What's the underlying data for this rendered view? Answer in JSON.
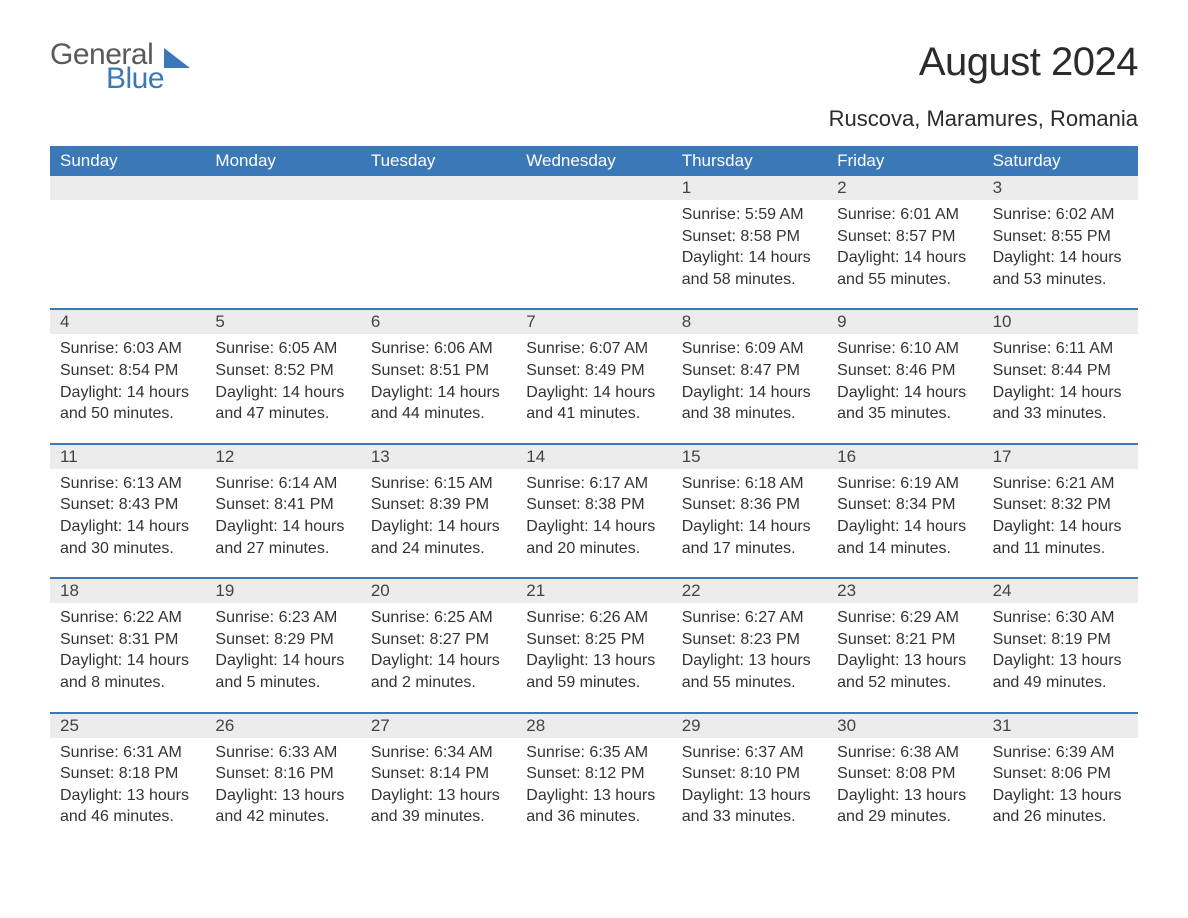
{
  "logo": {
    "general": "General",
    "blue": "Blue",
    "icon_color": "#3b78b8"
  },
  "title": "August 2024",
  "location": "Ruscova, Maramures, Romania",
  "colors": {
    "header_bg": "#3b78b8",
    "header_text": "#ffffff",
    "daybar_bg": "#ececec",
    "daybar_border": "#3b78b8",
    "body_text": "#333333",
    "page_bg": "#ffffff"
  },
  "typography": {
    "title_fontsize": 40,
    "location_fontsize": 22,
    "dow_fontsize": 17,
    "daynum_fontsize": 17,
    "body_fontsize": 16
  },
  "days_of_week": [
    "Sunday",
    "Monday",
    "Tuesday",
    "Wednesday",
    "Thursday",
    "Friday",
    "Saturday"
  ],
  "leading_blanks": 4,
  "days": [
    {
      "n": "1",
      "sunrise": "Sunrise: 5:59 AM",
      "sunset": "Sunset: 8:58 PM",
      "dl1": "Daylight: 14 hours",
      "dl2": "and 58 minutes."
    },
    {
      "n": "2",
      "sunrise": "Sunrise: 6:01 AM",
      "sunset": "Sunset: 8:57 PM",
      "dl1": "Daylight: 14 hours",
      "dl2": "and 55 minutes."
    },
    {
      "n": "3",
      "sunrise": "Sunrise: 6:02 AM",
      "sunset": "Sunset: 8:55 PM",
      "dl1": "Daylight: 14 hours",
      "dl2": "and 53 minutes."
    },
    {
      "n": "4",
      "sunrise": "Sunrise: 6:03 AM",
      "sunset": "Sunset: 8:54 PM",
      "dl1": "Daylight: 14 hours",
      "dl2": "and 50 minutes."
    },
    {
      "n": "5",
      "sunrise": "Sunrise: 6:05 AM",
      "sunset": "Sunset: 8:52 PM",
      "dl1": "Daylight: 14 hours",
      "dl2": "and 47 minutes."
    },
    {
      "n": "6",
      "sunrise": "Sunrise: 6:06 AM",
      "sunset": "Sunset: 8:51 PM",
      "dl1": "Daylight: 14 hours",
      "dl2": "and 44 minutes."
    },
    {
      "n": "7",
      "sunrise": "Sunrise: 6:07 AM",
      "sunset": "Sunset: 8:49 PM",
      "dl1": "Daylight: 14 hours",
      "dl2": "and 41 minutes."
    },
    {
      "n": "8",
      "sunrise": "Sunrise: 6:09 AM",
      "sunset": "Sunset: 8:47 PM",
      "dl1": "Daylight: 14 hours",
      "dl2": "and 38 minutes."
    },
    {
      "n": "9",
      "sunrise": "Sunrise: 6:10 AM",
      "sunset": "Sunset: 8:46 PM",
      "dl1": "Daylight: 14 hours",
      "dl2": "and 35 minutes."
    },
    {
      "n": "10",
      "sunrise": "Sunrise: 6:11 AM",
      "sunset": "Sunset: 8:44 PM",
      "dl1": "Daylight: 14 hours",
      "dl2": "and 33 minutes."
    },
    {
      "n": "11",
      "sunrise": "Sunrise: 6:13 AM",
      "sunset": "Sunset: 8:43 PM",
      "dl1": "Daylight: 14 hours",
      "dl2": "and 30 minutes."
    },
    {
      "n": "12",
      "sunrise": "Sunrise: 6:14 AM",
      "sunset": "Sunset: 8:41 PM",
      "dl1": "Daylight: 14 hours",
      "dl2": "and 27 minutes."
    },
    {
      "n": "13",
      "sunrise": "Sunrise: 6:15 AM",
      "sunset": "Sunset: 8:39 PM",
      "dl1": "Daylight: 14 hours",
      "dl2": "and 24 minutes."
    },
    {
      "n": "14",
      "sunrise": "Sunrise: 6:17 AM",
      "sunset": "Sunset: 8:38 PM",
      "dl1": "Daylight: 14 hours",
      "dl2": "and 20 minutes."
    },
    {
      "n": "15",
      "sunrise": "Sunrise: 6:18 AM",
      "sunset": "Sunset: 8:36 PM",
      "dl1": "Daylight: 14 hours",
      "dl2": "and 17 minutes."
    },
    {
      "n": "16",
      "sunrise": "Sunrise: 6:19 AM",
      "sunset": "Sunset: 8:34 PM",
      "dl1": "Daylight: 14 hours",
      "dl2": "and 14 minutes."
    },
    {
      "n": "17",
      "sunrise": "Sunrise: 6:21 AM",
      "sunset": "Sunset: 8:32 PM",
      "dl1": "Daylight: 14 hours",
      "dl2": "and 11 minutes."
    },
    {
      "n": "18",
      "sunrise": "Sunrise: 6:22 AM",
      "sunset": "Sunset: 8:31 PM",
      "dl1": "Daylight: 14 hours",
      "dl2": "and 8 minutes."
    },
    {
      "n": "19",
      "sunrise": "Sunrise: 6:23 AM",
      "sunset": "Sunset: 8:29 PM",
      "dl1": "Daylight: 14 hours",
      "dl2": "and 5 minutes."
    },
    {
      "n": "20",
      "sunrise": "Sunrise: 6:25 AM",
      "sunset": "Sunset: 8:27 PM",
      "dl1": "Daylight: 14 hours",
      "dl2": "and 2 minutes."
    },
    {
      "n": "21",
      "sunrise": "Sunrise: 6:26 AM",
      "sunset": "Sunset: 8:25 PM",
      "dl1": "Daylight: 13 hours",
      "dl2": "and 59 minutes."
    },
    {
      "n": "22",
      "sunrise": "Sunrise: 6:27 AM",
      "sunset": "Sunset: 8:23 PM",
      "dl1": "Daylight: 13 hours",
      "dl2": "and 55 minutes."
    },
    {
      "n": "23",
      "sunrise": "Sunrise: 6:29 AM",
      "sunset": "Sunset: 8:21 PM",
      "dl1": "Daylight: 13 hours",
      "dl2": "and 52 minutes."
    },
    {
      "n": "24",
      "sunrise": "Sunrise: 6:30 AM",
      "sunset": "Sunset: 8:19 PM",
      "dl1": "Daylight: 13 hours",
      "dl2": "and 49 minutes."
    },
    {
      "n": "25",
      "sunrise": "Sunrise: 6:31 AM",
      "sunset": "Sunset: 8:18 PM",
      "dl1": "Daylight: 13 hours",
      "dl2": "and 46 minutes."
    },
    {
      "n": "26",
      "sunrise": "Sunrise: 6:33 AM",
      "sunset": "Sunset: 8:16 PM",
      "dl1": "Daylight: 13 hours",
      "dl2": "and 42 minutes."
    },
    {
      "n": "27",
      "sunrise": "Sunrise: 6:34 AM",
      "sunset": "Sunset: 8:14 PM",
      "dl1": "Daylight: 13 hours",
      "dl2": "and 39 minutes."
    },
    {
      "n": "28",
      "sunrise": "Sunrise: 6:35 AM",
      "sunset": "Sunset: 8:12 PM",
      "dl1": "Daylight: 13 hours",
      "dl2": "and 36 minutes."
    },
    {
      "n": "29",
      "sunrise": "Sunrise: 6:37 AM",
      "sunset": "Sunset: 8:10 PM",
      "dl1": "Daylight: 13 hours",
      "dl2": "and 33 minutes."
    },
    {
      "n": "30",
      "sunrise": "Sunrise: 6:38 AM",
      "sunset": "Sunset: 8:08 PM",
      "dl1": "Daylight: 13 hours",
      "dl2": "and 29 minutes."
    },
    {
      "n": "31",
      "sunrise": "Sunrise: 6:39 AM",
      "sunset": "Sunset: 8:06 PM",
      "dl1": "Daylight: 13 hours",
      "dl2": "and 26 minutes."
    }
  ]
}
